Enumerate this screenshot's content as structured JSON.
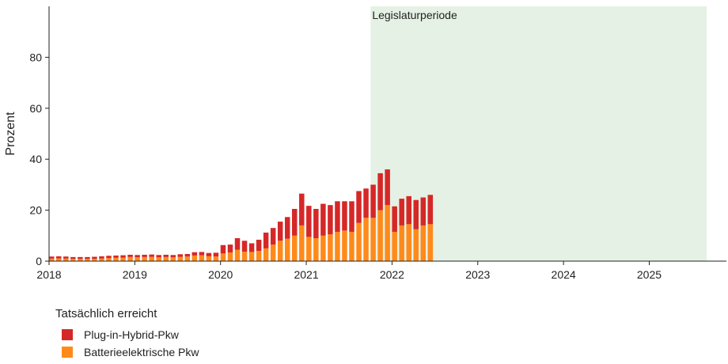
{
  "chart_data": {
    "type": "bar",
    "stacked": true,
    "ylabel": "Prozent",
    "ylim": [
      0,
      100
    ],
    "yticks": [
      0,
      20,
      40,
      60,
      80
    ],
    "xlim": [
      2018.0,
      2025.9
    ],
    "xticks": [
      "2018",
      "2019",
      "2020",
      "2021",
      "2022",
      "2023",
      "2024",
      "2025"
    ],
    "shaded_period": {
      "label": "Legislaturperiode",
      "start": 2021.75,
      "end": 2025.67,
      "color": "#e4f1e4"
    },
    "legend_title": "Tatsächlich erreicht",
    "months": [
      "2018-01",
      "2018-02",
      "2018-03",
      "2018-04",
      "2018-05",
      "2018-06",
      "2018-07",
      "2018-08",
      "2018-09",
      "2018-10",
      "2018-11",
      "2018-12",
      "2019-01",
      "2019-02",
      "2019-03",
      "2019-04",
      "2019-05",
      "2019-06",
      "2019-07",
      "2019-08",
      "2019-09",
      "2019-10",
      "2019-11",
      "2019-12",
      "2020-01",
      "2020-02",
      "2020-03",
      "2020-04",
      "2020-05",
      "2020-06",
      "2020-07",
      "2020-08",
      "2020-09",
      "2020-10",
      "2020-11",
      "2020-12",
      "2021-01",
      "2021-02",
      "2021-03",
      "2021-04",
      "2021-05",
      "2021-06",
      "2021-07",
      "2021-08",
      "2021-09",
      "2021-10",
      "2021-11",
      "2021-12",
      "2022-01",
      "2022-02",
      "2022-03",
      "2022-04",
      "2022-05",
      "2022-06"
    ],
    "series": [
      {
        "name": "Batterieelektrische Pkw",
        "color": "#ff8a1a",
        "values": [
          1.0,
          1.1,
          1.0,
          0.9,
          0.9,
          0.9,
          0.9,
          1.0,
          1.2,
          1.3,
          1.4,
          1.6,
          1.5,
          1.6,
          1.7,
          1.5,
          1.6,
          1.5,
          1.7,
          1.8,
          2.2,
          2.3,
          1.9,
          1.8,
          3.0,
          3.4,
          4.5,
          3.7,
          3.6,
          4.0,
          5.0,
          6.5,
          8.0,
          8.8,
          10.0,
          14.0,
          9.5,
          9.0,
          10.0,
          10.5,
          11.5,
          12.0,
          11.5,
          15.0,
          17.0,
          17.0,
          20.0,
          22.0,
          11.5,
          14.0,
          14.5,
          12.5,
          14.0,
          14.5
        ]
      },
      {
        "name": "Plug-in-Hybrid-Pkw",
        "color": "#d62728",
        "values": [
          0.8,
          0.8,
          0.8,
          0.7,
          0.7,
          0.7,
          0.8,
          0.9,
          0.9,
          0.9,
          0.9,
          0.9,
          0.9,
          0.9,
          0.9,
          0.9,
          0.9,
          0.9,
          1.0,
          1.0,
          1.3,
          1.3,
          1.3,
          1.5,
          3.3,
          3.1,
          4.5,
          4.3,
          3.4,
          4.4,
          6.2,
          6.5,
          7.5,
          8.5,
          10.5,
          12.5,
          12.2,
          11.5,
          12.5,
          11.5,
          12.0,
          11.5,
          12.0,
          12.5,
          11.5,
          13.0,
          14.5,
          14.0,
          10.0,
          10.5,
          11.0,
          11.5,
          11.0,
          11.5
        ]
      }
    ]
  },
  "legend": {
    "title": "Tatsächlich erreicht",
    "items": [
      {
        "label": "Plug-in-Hybrid-Pkw",
        "color": "#d62728"
      },
      {
        "label": "Batterieelektrische Pkw",
        "color": "#ff8a1a"
      }
    ]
  }
}
